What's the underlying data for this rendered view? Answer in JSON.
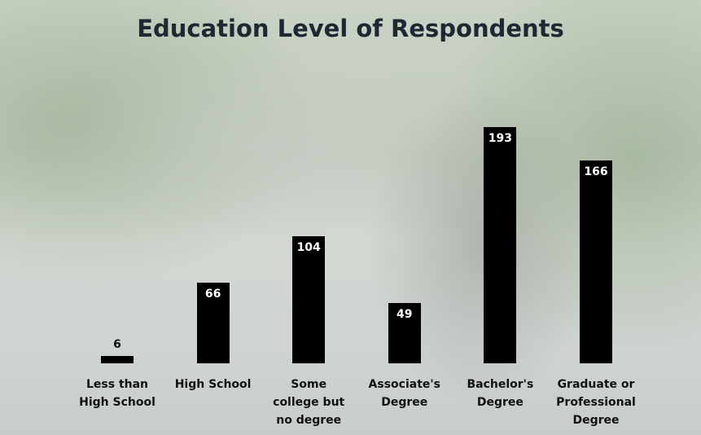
{
  "chart_data": {
    "type": "bar",
    "title": "Education Level of Respondents",
    "categories": [
      "Less than High School",
      "High School",
      "Some college but no degree",
      "Associate's Degree",
      "Bachelor's Degree",
      "Graduate or Professional Degree"
    ],
    "values": [
      6,
      66,
      104,
      49,
      193,
      166
    ],
    "color": "#000000"
  }
}
